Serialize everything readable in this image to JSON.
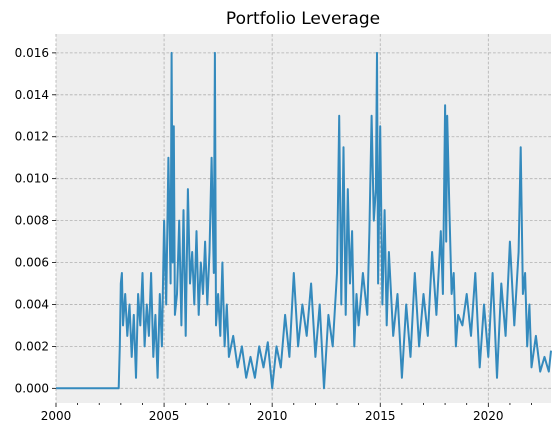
{
  "chart_data": {
    "type": "line",
    "title": "Portfolio Leverage",
    "xlabel": "",
    "ylabel": "",
    "xlim": [
      2000.0,
      2022.9
    ],
    "ylim": [
      -0.0007,
      0.0169
    ],
    "x_ticks": [
      2000,
      2005,
      2010,
      2015,
      2020
    ],
    "x_tick_labels": [
      "2000",
      "2005",
      "2010",
      "2015",
      "2020"
    ],
    "x_minor_ticks": [
      2001,
      2002,
      2003,
      2004,
      2006,
      2007,
      2008,
      2009,
      2011,
      2012,
      2013,
      2014,
      2016,
      2017,
      2018,
      2019,
      2021,
      2022
    ],
    "y_ticks": [
      0.0,
      0.002,
      0.004,
      0.006,
      0.008,
      0.01,
      0.012,
      0.014,
      0.016
    ],
    "y_tick_labels": [
      "0.000",
      "0.002",
      "0.004",
      "0.006",
      "0.008",
      "0.010",
      "0.012",
      "0.014",
      "0.016"
    ],
    "grid": true,
    "legend": "none",
    "style": {
      "background": "#eeeeee",
      "line_color": "#348abd",
      "grid_color": "#b0b0b0"
    },
    "series": [
      {
        "x": [
          2000.0,
          2002.9,
          2002.95,
          2003.0,
          2003.05,
          2003.1,
          2003.2,
          2003.3,
          2003.4,
          2003.5,
          2003.6,
          2003.7,
          2003.8,
          2003.9,
          2004.0,
          2004.1,
          2004.2,
          2004.3,
          2004.4,
          2004.5,
          2004.6,
          2004.7,
          2004.8,
          2004.9,
          2005.0,
          2005.1,
          2005.2,
          2005.3,
          2005.35,
          2005.4,
          2005.45,
          2005.5,
          2005.6,
          2005.7,
          2005.8,
          2005.9,
          2006.0,
          2006.1,
          2006.2,
          2006.3,
          2006.4,
          2006.5,
          2006.6,
          2006.7,
          2006.8,
          2006.9,
          2007.0,
          2007.1,
          2007.2,
          2007.3,
          2007.35,
          2007.4,
          2007.5,
          2007.6,
          2007.7,
          2007.8,
          2007.9,
          2008.0,
          2008.2,
          2008.4,
          2008.6,
          2008.8,
          2009.0,
          2009.2,
          2009.4,
          2009.6,
          2009.8,
          2010.0,
          2010.2,
          2010.4,
          2010.6,
          2010.8,
          2011.0,
          2011.2,
          2011.4,
          2011.6,
          2011.8,
          2012.0,
          2012.2,
          2012.4,
          2012.6,
          2012.8,
          2013.0,
          2013.1,
          2013.2,
          2013.3,
          2013.4,
          2013.5,
          2013.6,
          2013.7,
          2013.8,
          2013.9,
          2014.0,
          2014.2,
          2014.4,
          2014.5,
          2014.6,
          2014.7,
          2014.8,
          2014.85,
          2014.9,
          2015.0,
          2015.1,
          2015.2,
          2015.3,
          2015.4,
          2015.6,
          2015.8,
          2016.0,
          2016.2,
          2016.4,
          2016.6,
          2016.8,
          2017.0,
          2017.2,
          2017.4,
          2017.6,
          2017.8,
          2017.9,
          2018.0,
          2018.05,
          2018.1,
          2018.2,
          2018.3,
          2018.4,
          2018.5,
          2018.6,
          2018.8,
          2019.0,
          2019.2,
          2019.4,
          2019.6,
          2019.8,
          2020.0,
          2020.2,
          2020.4,
          2020.6,
          2020.8,
          2021.0,
          2021.2,
          2021.4,
          2021.5,
          2021.6,
          2021.7,
          2021.8,
          2021.9,
          2022.0,
          2022.2,
          2022.4,
          2022.6,
          2022.8,
          2022.9
        ],
        "y": [
          0.0,
          0.0,
          0.002,
          0.005,
          0.0055,
          0.003,
          0.0045,
          0.0025,
          0.004,
          0.0015,
          0.0035,
          0.0005,
          0.0045,
          0.003,
          0.0055,
          0.002,
          0.004,
          0.0025,
          0.0055,
          0.0015,
          0.0035,
          0.0005,
          0.0045,
          0.002,
          0.008,
          0.004,
          0.011,
          0.005,
          0.016,
          0.006,
          0.0125,
          0.0035,
          0.0045,
          0.008,
          0.003,
          0.0085,
          0.0025,
          0.0095,
          0.005,
          0.0065,
          0.004,
          0.0075,
          0.0035,
          0.006,
          0.0045,
          0.007,
          0.004,
          0.0065,
          0.011,
          0.0055,
          0.016,
          0.003,
          0.0045,
          0.0025,
          0.006,
          0.002,
          0.004,
          0.0015,
          0.0025,
          0.001,
          0.002,
          0.0005,
          0.0015,
          0.0005,
          0.002,
          0.001,
          0.0022,
          0.0,
          0.002,
          0.001,
          0.0035,
          0.0015,
          0.0055,
          0.002,
          0.004,
          0.0025,
          0.005,
          0.0015,
          0.004,
          0.0,
          0.0035,
          0.002,
          0.0055,
          0.013,
          0.004,
          0.0115,
          0.0035,
          0.0095,
          0.005,
          0.0075,
          0.002,
          0.0045,
          0.003,
          0.0055,
          0.0035,
          0.0075,
          0.013,
          0.008,
          0.0095,
          0.016,
          0.005,
          0.0125,
          0.004,
          0.0085,
          0.003,
          0.0065,
          0.0025,
          0.0045,
          0.0005,
          0.004,
          0.0015,
          0.0055,
          0.002,
          0.0045,
          0.0025,
          0.0065,
          0.0035,
          0.0075,
          0.0045,
          0.0135,
          0.007,
          0.013,
          0.0085,
          0.0045,
          0.0055,
          0.002,
          0.0035,
          0.003,
          0.0045,
          0.0025,
          0.0055,
          0.001,
          0.004,
          0.0015,
          0.0055,
          0.0005,
          0.005,
          0.0025,
          0.007,
          0.003,
          0.0065,
          0.0115,
          0.0045,
          0.0055,
          0.002,
          0.004,
          0.001,
          0.0025,
          0.0008,
          0.0015,
          0.0008,
          0.0018
        ]
      }
    ]
  }
}
